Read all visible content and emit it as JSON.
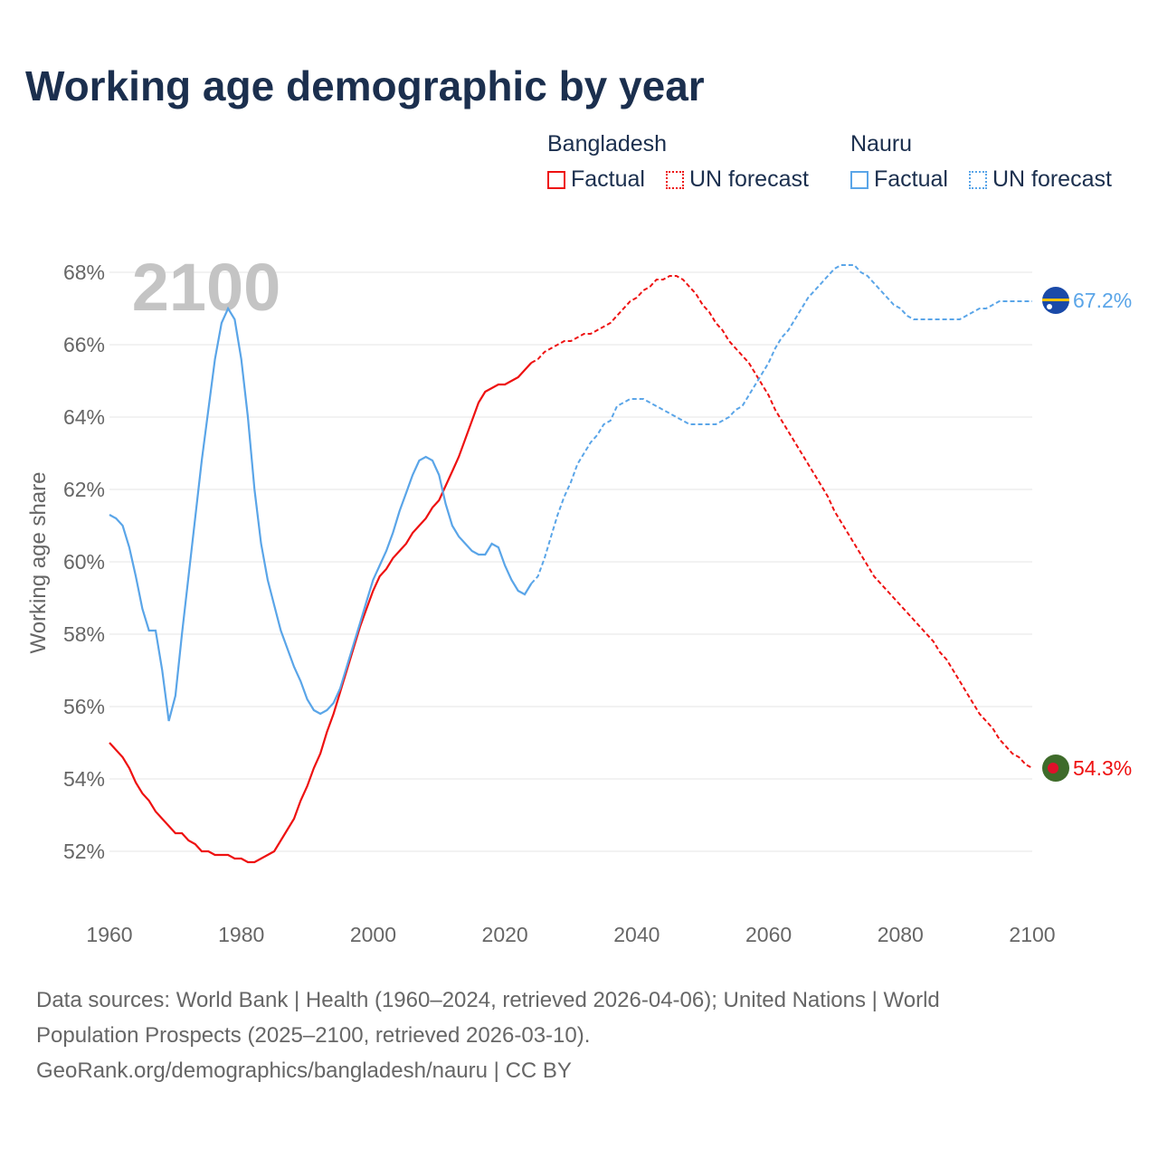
{
  "title": "Working age demographic by year",
  "legend": {
    "groups": [
      {
        "name": "Bangladesh",
        "factual": "Factual",
        "forecast": "UN forecast",
        "color": "#ee1111"
      },
      {
        "name": "Nauru",
        "factual": "Factual",
        "forecast": "UN forecast",
        "color": "#5aa5e8"
      }
    ]
  },
  "year_watermark": "2100",
  "end_labels": {
    "nauru": "67.2%",
    "bangladesh": "54.3%"
  },
  "footer": {
    "line1": "Data sources: World Bank | Health (1960–2024, retrieved 2026-04-06); United Nations | World",
    "line2": "Population Prospects (2025–2100, retrieved 2026-03-10).",
    "line3": "GeoRank.org/demographics/bangladesh/nauru | CC BY"
  },
  "chart_data": {
    "type": "line",
    "title": "Working age demographic by year",
    "xlabel": "",
    "ylabel": "Working age share",
    "xlim": [
      1960,
      2100
    ],
    "ylim": [
      51,
      69
    ],
    "xticks": [
      1960,
      1980,
      2000,
      2020,
      2040,
      2060,
      2080,
      2100
    ],
    "xtick_labels": [
      "1960",
      "1980",
      "2000",
      "2020",
      "2040",
      "2060",
      "2080",
      "2100"
    ],
    "yticks": [
      52,
      54,
      56,
      58,
      60,
      62,
      64,
      66,
      68
    ],
    "ytick_labels": [
      "52%",
      "54%",
      "56%",
      "58%",
      "60%",
      "62%",
      "64%",
      "66%",
      "68%"
    ],
    "grid": true,
    "legend_position": "top-right",
    "factual_end_year": 2024,
    "series": [
      {
        "name": "Bangladesh",
        "color": "#ee1111",
        "start_year": 1960,
        "values": [
          55.0,
          54.8,
          54.6,
          54.3,
          53.9,
          53.6,
          53.4,
          53.1,
          52.9,
          52.7,
          52.5,
          52.5,
          52.3,
          52.2,
          52.0,
          52.0,
          51.9,
          51.9,
          51.9,
          51.8,
          51.8,
          51.7,
          51.7,
          51.8,
          51.9,
          52.0,
          52.3,
          52.6,
          52.9,
          53.4,
          53.8,
          54.3,
          54.7,
          55.3,
          55.8,
          56.4,
          57.0,
          57.6,
          58.2,
          58.7,
          59.2,
          59.6,
          59.8,
          60.1,
          60.3,
          60.5,
          60.8,
          61.0,
          61.2,
          61.5,
          61.7,
          62.1,
          62.5,
          62.9,
          63.4,
          63.9,
          64.4,
          64.7,
          64.8,
          64.9,
          64.9,
          65.0,
          65.1,
          65.3,
          65.5,
          65.6,
          65.8,
          65.9,
          66.0,
          66.1,
          66.1,
          66.2,
          66.3,
          66.3,
          66.4,
          66.5,
          66.6,
          66.8,
          67.0,
          67.2,
          67.3,
          67.5,
          67.6,
          67.8,
          67.8,
          67.9,
          67.9,
          67.8,
          67.6,
          67.4,
          67.1,
          66.9,
          66.6,
          66.4,
          66.1,
          65.9,
          65.7,
          65.5,
          65.2,
          64.9,
          64.6,
          64.2,
          63.9,
          63.6,
          63.3,
          63.0,
          62.7,
          62.4,
          62.1,
          61.8,
          61.4,
          61.1,
          60.8,
          60.5,
          60.2,
          59.9,
          59.6,
          59.4,
          59.2,
          59.0,
          58.8,
          58.6,
          58.4,
          58.2,
          58.0,
          57.8,
          57.5,
          57.3,
          57.0,
          56.7,
          56.4,
          56.1,
          55.8,
          55.6,
          55.4,
          55.1,
          54.9,
          54.7,
          54.6,
          54.4,
          54.3
        ]
      },
      {
        "name": "Nauru",
        "color": "#5aa5e8",
        "start_year": 1960,
        "values": [
          61.3,
          61.2,
          61.0,
          60.4,
          59.6,
          58.7,
          58.1,
          58.1,
          57.0,
          55.6,
          56.3,
          58.0,
          59.6,
          61.2,
          62.8,
          64.2,
          65.6,
          66.6,
          67.0,
          66.7,
          65.6,
          64.0,
          62.0,
          60.5,
          59.5,
          58.8,
          58.1,
          57.6,
          57.1,
          56.7,
          56.2,
          55.9,
          55.8,
          55.9,
          56.1,
          56.5,
          57.1,
          57.7,
          58.3,
          58.9,
          59.5,
          59.9,
          60.3,
          60.8,
          61.4,
          61.9,
          62.4,
          62.8,
          62.9,
          62.8,
          62.4,
          61.6,
          61.0,
          60.7,
          60.5,
          60.3,
          60.2,
          60.2,
          60.5,
          60.4,
          59.9,
          59.5,
          59.2,
          59.1,
          59.4,
          59.6,
          60.1,
          60.7,
          61.3,
          61.8,
          62.2,
          62.7,
          63.0,
          63.3,
          63.5,
          63.8,
          63.9,
          64.3,
          64.4,
          64.5,
          64.5,
          64.5,
          64.4,
          64.3,
          64.2,
          64.1,
          64.0,
          63.9,
          63.8,
          63.8,
          63.8,
          63.8,
          63.8,
          63.9,
          64.0,
          64.2,
          64.3,
          64.6,
          64.9,
          65.2,
          65.5,
          65.9,
          66.2,
          66.4,
          66.7,
          67.0,
          67.3,
          67.5,
          67.7,
          67.9,
          68.1,
          68.2,
          68.2,
          68.2,
          68.0,
          67.9,
          67.7,
          67.5,
          67.3,
          67.1,
          67.0,
          66.8,
          66.7,
          66.7,
          66.7,
          66.7,
          66.7,
          66.7,
          66.7,
          66.7,
          66.8,
          66.9,
          67.0,
          67.0,
          67.1,
          67.2,
          67.2,
          67.2,
          67.2,
          67.2,
          67.2
        ]
      }
    ]
  }
}
